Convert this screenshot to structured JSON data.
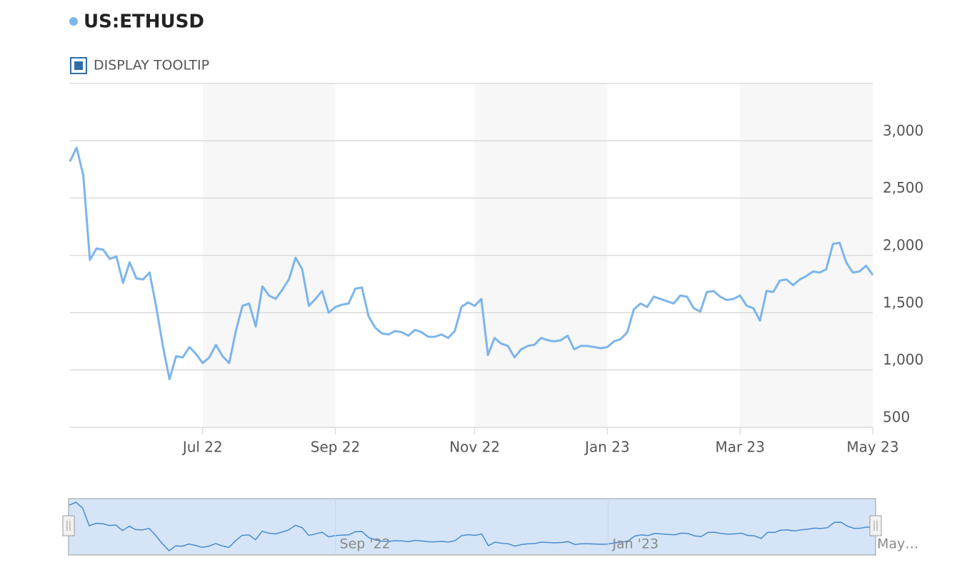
{
  "chart_data": {
    "type": "line",
    "title": "US:ETHUSD",
    "tooltip_toggle": "DISPLAY TOOLTIP",
    "categories": [
      null,
      null,
      null,
      null,
      null,
      null,
      null,
      null,
      null,
      null,
      null,
      null,
      null,
      null,
      null,
      null,
      null,
      null,
      null,
      null,
      "Jul 22",
      null,
      null,
      null,
      null,
      null,
      null,
      null,
      null,
      null,
      null,
      null,
      null,
      null,
      null,
      null,
      null,
      null,
      null,
      null,
      "Sep 22",
      null,
      null,
      null,
      null,
      null,
      null,
      null,
      null,
      null,
      null,
      null,
      null,
      null,
      null,
      null,
      null,
      null,
      null,
      null,
      null,
      "Nov 22",
      null,
      null,
      null,
      null,
      null,
      null,
      null,
      null,
      null,
      null,
      null,
      null,
      null,
      null,
      null,
      null,
      null,
      null,
      null,
      "Jan 23",
      null,
      null,
      null,
      null,
      null,
      null,
      null,
      null,
      null,
      null,
      null,
      null,
      null,
      null,
      null,
      null,
      null,
      null,
      null,
      "Mar 23",
      null,
      null,
      null,
      null,
      null,
      null,
      null,
      null,
      null,
      null,
      null,
      null,
      null,
      null,
      null,
      null,
      null,
      null,
      null,
      "May 23"
    ],
    "series": [
      {
        "name": "US:ETHUSD",
        "color": "#7cb5ec",
        "values": [
          2820,
          2940,
          2700,
          1960,
          2060,
          2050,
          1970,
          1990,
          1760,
          1940,
          1800,
          1790,
          1850,
          1550,
          1210,
          920,
          1120,
          1110,
          1200,
          1140,
          1060,
          1110,
          1220,
          1120,
          1060,
          1340,
          1560,
          1580,
          1380,
          1730,
          1650,
          1620,
          1700,
          1790,
          1980,
          1880,
          1560,
          1620,
          1690,
          1500,
          1550,
          1570,
          1580,
          1710,
          1720,
          1470,
          1370,
          1320,
          1310,
          1340,
          1330,
          1300,
          1350,
          1330,
          1290,
          1290,
          1310,
          1280,
          1340,
          1550,
          1590,
          1560,
          1620,
          1130,
          1280,
          1230,
          1210,
          1110,
          1180,
          1210,
          1220,
          1280,
          1260,
          1250,
          1260,
          1300,
          1180,
          1210,
          1210,
          1200,
          1190,
          1200,
          1250,
          1270,
          1330,
          1530,
          1580,
          1550,
          1640,
          1620,
          1600,
          1580,
          1650,
          1640,
          1540,
          1510,
          1680,
          1690,
          1640,
          1610,
          1620,
          1650,
          1560,
          1540,
          1430,
          1690,
          1680,
          1780,
          1790,
          1740,
          1790,
          1820,
          1860,
          1850,
          1880,
          2100,
          2110,
          1940,
          1850,
          1860,
          1910,
          1830
        ]
      }
    ],
    "ylim": [
      500,
      3500
    ],
    "yticks": [
      500,
      {
        "value": 1000,
        "label": "1,000"
      },
      {
        "value": 1500,
        "label": "1,500"
      },
      {
        "value": 2000,
        "label": "2,000"
      },
      {
        "value": 2500,
        "label": "2,500"
      },
      {
        "value": 3000,
        "label": "3,000"
      }
    ],
    "grid": true,
    "navigator": {
      "labels": [
        "Sep '22",
        "Jan '23",
        "May…"
      ]
    }
  }
}
